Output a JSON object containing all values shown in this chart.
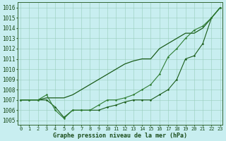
{
  "title": "Graphe pression niveau de la mer (hPa)",
  "background_color": "#c8eef0",
  "grid_color": "#99ccbb",
  "line_color1": "#1a5c1a",
  "line_color2": "#1a5c1a",
  "line_color3": "#2e7d32",
  "xlim": [
    -0.3,
    23.3
  ],
  "ylim": [
    1004.6,
    1016.5
  ],
  "yticks": [
    1005,
    1006,
    1007,
    1008,
    1009,
    1010,
    1011,
    1012,
    1013,
    1014,
    1015,
    1016
  ],
  "xticks": [
    0,
    1,
    2,
    3,
    4,
    5,
    6,
    7,
    8,
    9,
    10,
    11,
    12,
    13,
    14,
    15,
    16,
    17,
    18,
    19,
    20,
    21,
    22,
    23
  ],
  "series1_x": [
    0,
    1,
    2,
    3,
    4,
    5,
    6,
    7,
    8,
    9,
    10,
    11,
    12,
    13,
    14,
    15,
    16,
    17,
    18,
    19,
    20,
    21,
    22,
    23
  ],
  "series1_y": [
    1007.0,
    1007.0,
    1007.0,
    1007.2,
    1007.2,
    1007.2,
    1007.5,
    1008.0,
    1008.5,
    1009.0,
    1009.5,
    1010.0,
    1010.5,
    1010.8,
    1011.0,
    1011.0,
    1012.0,
    1012.5,
    1013.0,
    1013.5,
    1013.5,
    1014.0,
    1015.0,
    1016.0
  ],
  "series2_x": [
    0,
    1,
    2,
    3,
    4,
    5,
    6,
    7,
    8,
    9,
    10,
    11,
    12,
    13,
    14,
    15,
    16,
    17,
    18,
    19,
    20,
    21,
    22,
    23
  ],
  "series2_y": [
    1007.0,
    1007.0,
    1007.0,
    1007.0,
    1006.3,
    1005.3,
    1006.0,
    1006.0,
    1006.0,
    1006.0,
    1006.3,
    1006.5,
    1006.8,
    1007.0,
    1007.0,
    1007.0,
    1007.5,
    1008.0,
    1009.0,
    1011.0,
    1011.3,
    1012.5,
    1015.0,
    1016.0
  ],
  "series3_x": [
    0,
    1,
    2,
    3,
    4,
    5,
    6,
    7,
    8,
    9,
    10,
    11,
    12,
    13,
    14,
    15,
    16,
    17,
    18,
    19,
    20,
    21,
    22,
    23
  ],
  "series3_y": [
    1007.0,
    1007.0,
    1007.0,
    1007.5,
    1006.0,
    1005.2,
    1006.0,
    1006.0,
    1006.0,
    1006.5,
    1007.0,
    1007.0,
    1007.2,
    1007.5,
    1008.0,
    1008.5,
    1009.5,
    1011.2,
    1012.0,
    1013.0,
    1013.8,
    1014.2,
    1015.0,
    1016.0
  ],
  "ylabel_fontsize": 5.5,
  "xlabel_fontsize": 6.0,
  "tick_fontsize": 5.0
}
